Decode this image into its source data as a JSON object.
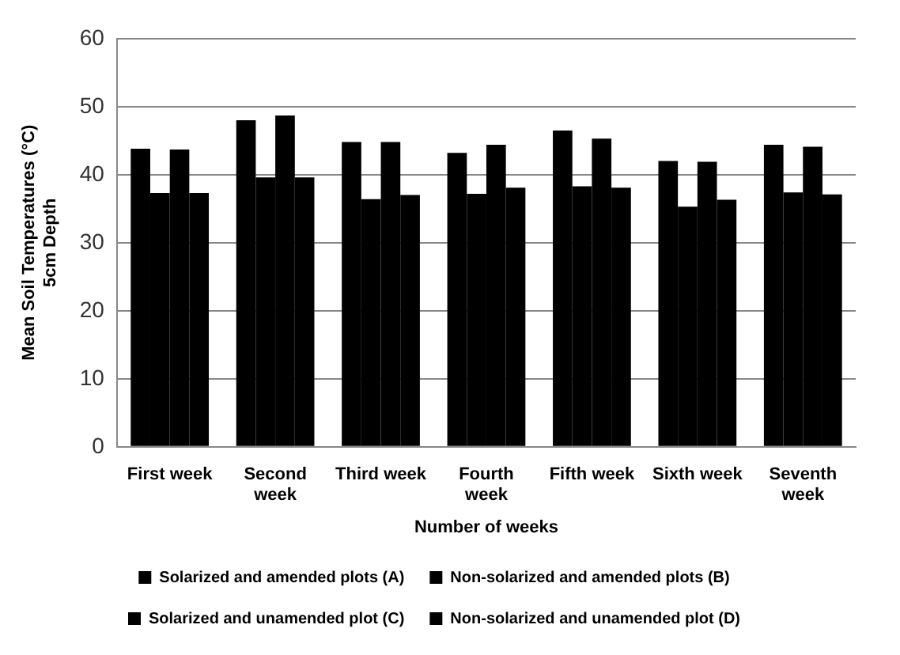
{
  "chart_data": {
    "type": "bar",
    "xlabel": "Number of weeks",
    "ylabel": "Mean Soil Temperatures (°C)\n5cm Depth",
    "categories": [
      "First week",
      "Second week",
      "Third week",
      "Fourth week",
      "Fifth week",
      "Sixth week",
      "Seventh week"
    ],
    "series": [
      {
        "name": "Solarized and amended plots (A)",
        "color": "#000000",
        "values": [
          43.8,
          48,
          44.8,
          43.2,
          46.5,
          42,
          44.4
        ]
      },
      {
        "name": "Non-solarized and amended plots (B)",
        "color": "#000000",
        "values": [
          37.3,
          39.6,
          36.4,
          37.2,
          38.3,
          35.3,
          37.4
        ]
      },
      {
        "name": "Solarized and unamended plot (C)",
        "color": "#000000",
        "values": [
          43.7,
          48.7,
          44.8,
          44.4,
          45.3,
          41.9,
          44.1
        ]
      },
      {
        "name": "Non-solarized and unamended plot (D)",
        "color": "#000000",
        "values": [
          37.3,
          39.6,
          37,
          38.1,
          38.1,
          36.3,
          37.1
        ]
      }
    ],
    "ylim": [
      0,
      60
    ],
    "yticks": [
      0,
      10,
      20,
      30,
      40,
      50,
      60
    ],
    "grid": "y",
    "legend": "bottom"
  }
}
